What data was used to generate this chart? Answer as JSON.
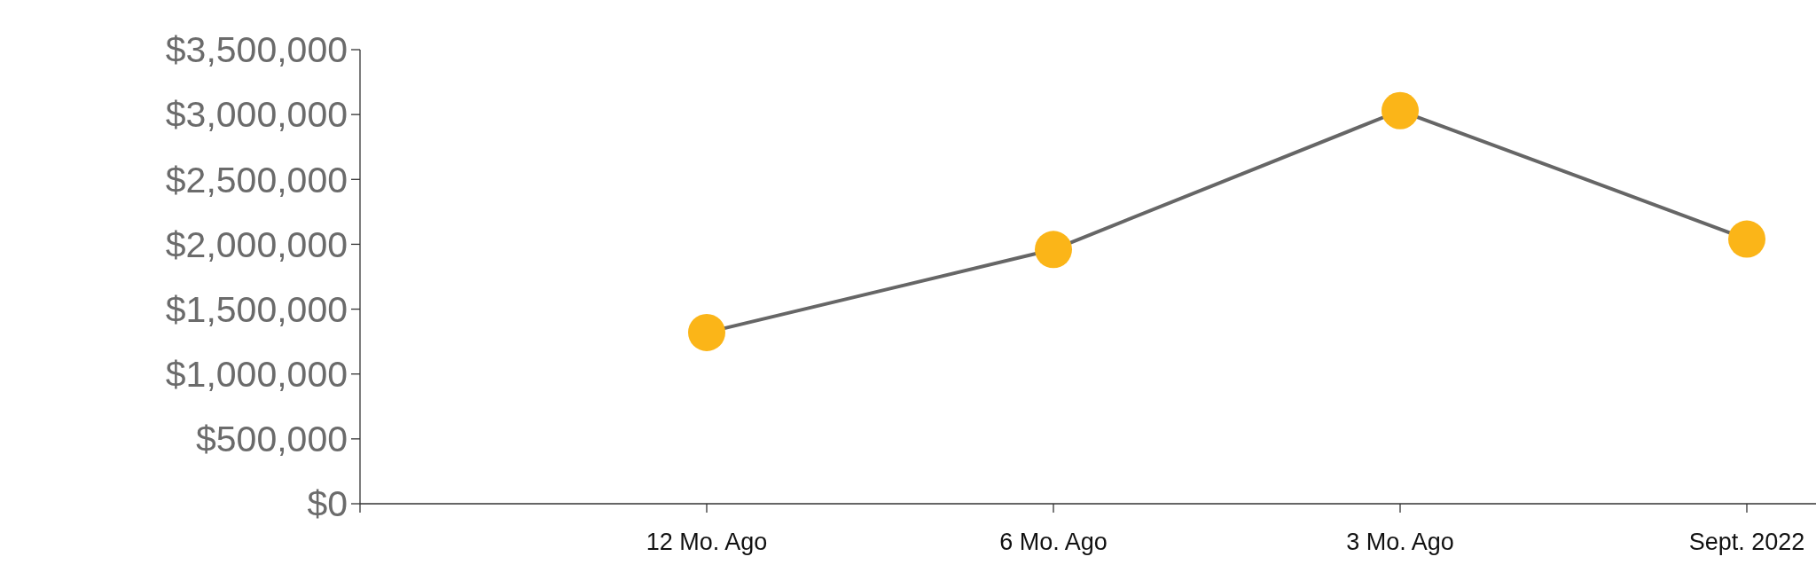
{
  "chart_data": {
    "type": "line",
    "categories": [
      null,
      "12 Mo. Ago",
      "6 Mo. Ago",
      "3 Mo. Ago",
      "Sept. 2022"
    ],
    "series": [
      {
        "color": "#666666",
        "colors": [
          null,
          "#fbb518",
          "#fbb518",
          "#fbb518",
          "#fbb518"
        ],
        "values": [
          null,
          1320000,
          1960000,
          3030000,
          2040000
        ]
      }
    ],
    "marker": "circle",
    "ylim": [
      0,
      3500000
    ],
    "yticks": [
      {
        "value": 0,
        "label": "$0"
      },
      {
        "value": 500000,
        "label": "$500,000"
      },
      {
        "value": 1000000,
        "label": "$1,000,000"
      },
      {
        "value": 1500000,
        "label": "$1,500,000"
      },
      {
        "value": 2000000,
        "label": "$2,000,000"
      },
      {
        "value": 2500000,
        "label": "$2,500,000"
      },
      {
        "value": 3000000,
        "label": "$3,000,000"
      },
      {
        "value": 3500000,
        "label": "$3,500,000"
      }
    ],
    "grid": false
  }
}
